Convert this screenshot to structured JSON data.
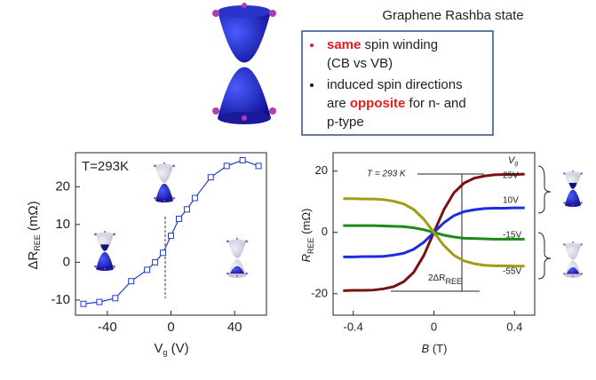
{
  "title": "Graphene Rashba state",
  "bullets": [
    [
      [
        "same",
        " spin winding"
      ],
      [
        "(CB vs VB)"
      ]
    ],
    [
      [
        "induced spin directions"
      ],
      [
        "are ",
        "opposite",
        " for n- and"
      ],
      [
        "p-type"
      ]
    ]
  ],
  "chart_data": [
    {
      "type": "line",
      "annotation": "T=293K",
      "xlabel": [
        "V",
        "g",
        " (V)"
      ],
      "ylabel": [
        "ΔR",
        "REE",
        " (mΩ)"
      ],
      "x": [
        -55,
        -45,
        -35,
        -25,
        -15,
        -10,
        -5,
        0,
        5,
        10,
        15,
        25,
        35,
        45,
        55
      ],
      "series": [
        {
          "color": "#1f3fbf",
          "values": [
            -11,
            -10.5,
            -9.5,
            -5,
            -2,
            0,
            2.5,
            7,
            11.5,
            14,
            17,
            22.5,
            25.5,
            27,
            25.5
          ]
        }
      ],
      "xlim": [
        -60,
        60
      ],
      "xticks": [
        -40,
        0,
        40
      ],
      "ylim": [
        -14,
        29
      ],
      "yticks": [
        -10,
        0,
        10,
        20
      ]
    },
    {
      "type": "line",
      "annotation": "T = 293 K",
      "legend_title": "V",
      "legend_title_sub": "g",
      "delta_label": [
        "2ΔR",
        "REE"
      ],
      "xlabel": [
        "B",
        " (T)"
      ],
      "ylabel": [
        "R",
        "REE",
        " (mΩ)"
      ],
      "x": [
        -0.45,
        -0.4,
        -0.35,
        -0.3,
        -0.25,
        -0.2,
        -0.15,
        -0.1,
        -0.05,
        0,
        0.05,
        0.1,
        0.15,
        0.2,
        0.25,
        0.3,
        0.35,
        0.4,
        0.45
      ],
      "series": [
        {
          "name": "25V",
          "color": "#7a1212",
          "values": [
            -19,
            -18.9,
            -18.9,
            -18.8,
            -18.4,
            -17.7,
            -16.1,
            -13,
            -7.5,
            0,
            7.5,
            13,
            16.1,
            17.7,
            18.4,
            18.8,
            18.9,
            18.9,
            19
          ]
        },
        {
          "name": "10V",
          "color": "#1a2ee0",
          "values": [
            -8,
            -8,
            -7.9,
            -7.9,
            -7.8,
            -7.4,
            -6.8,
            -5.5,
            -3.2,
            0,
            3.2,
            5.5,
            6.8,
            7.4,
            7.8,
            7.9,
            7.9,
            8,
            8
          ]
        },
        {
          "name": "-15V",
          "color": "#1a8a1a",
          "values": [
            2.2,
            2.2,
            2.2,
            2.2,
            2.1,
            2,
            1.9,
            1.5,
            0.9,
            0,
            -0.9,
            -1.5,
            -1.9,
            -2,
            -2.1,
            -2.2,
            -2.2,
            -2.2,
            -2.2
          ]
        },
        {
          "name": "-55V",
          "color": "#a39b12",
          "values": [
            11,
            11,
            10.9,
            10.9,
            10.7,
            10.2,
            9.3,
            7.5,
            4.3,
            0,
            -4.3,
            -7.5,
            -9.3,
            -10.2,
            -10.7,
            -10.9,
            -10.9,
            -11,
            -11
          ]
        }
      ],
      "xlim": [
        -0.5,
        0.5
      ],
      "xticks": [
        -0.4,
        0,
        0.4
      ],
      "ylim": [
        -27,
        26
      ],
      "yticks": [
        -20,
        0,
        20
      ]
    }
  ]
}
